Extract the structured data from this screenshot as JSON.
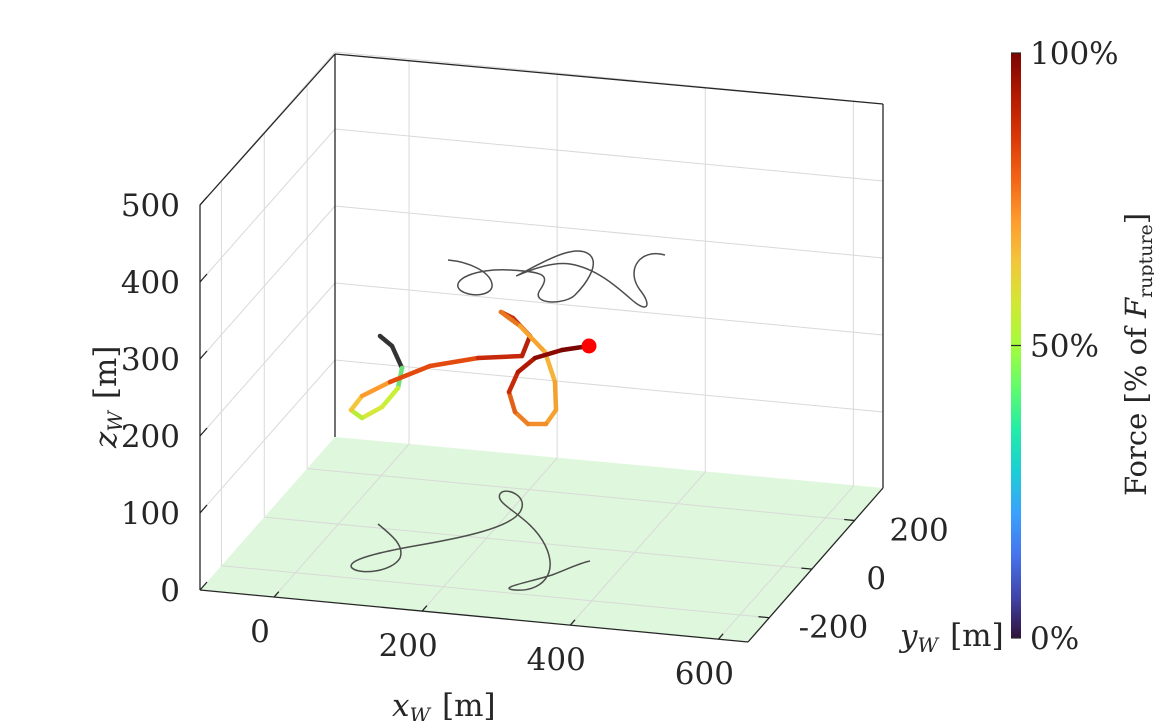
{
  "chart_data": {
    "type": "line3d",
    "axes": {
      "x": {
        "var": "x",
        "sub": "W",
        "unit": "[m]",
        "ticks": [
          "0",
          "200",
          "400",
          "600"
        ],
        "tick_values": [
          0,
          200,
          400,
          600
        ],
        "range": [
          -100,
          640
        ]
      },
      "y": {
        "var": "y",
        "sub": "W",
        "unit": "[m]",
        "ticks": [
          "-200",
          "0",
          "200"
        ],
        "tick_values": [
          -200,
          0,
          200
        ],
        "range": [
          -300,
          330
        ]
      },
      "z": {
        "var": "z",
        "sub": "W",
        "unit": "[m]",
        "ticks": [
          "0",
          "100",
          "200",
          "300",
          "400",
          "500"
        ],
        "tick_values": [
          0,
          100,
          200,
          300,
          400,
          500
        ],
        "range": [
          0,
          500
        ]
      },
      "grid": true,
      "ground_color": "#dff7dc"
    },
    "colorbar": {
      "label_prefix": "Force [% of ",
      "label_var": "F",
      "label_sub": "rupture",
      "label_suffix": "]",
      "ticks": [
        "0%",
        "50%",
        "100%"
      ],
      "tick_values": [
        0,
        50,
        100
      ],
      "colormap": "turbo",
      "colors": [
        "#30123b",
        "#4145ab",
        "#4675ed",
        "#39a2fc",
        "#1bcfd4",
        "#24eca6",
        "#61fc6c",
        "#a4fc3b",
        "#d1e834",
        "#f3c63a",
        "#fe9b2d",
        "#f36315",
        "#d93806",
        "#b11901",
        "#7a0402"
      ]
    },
    "trajectory": {
      "point_colors": [
        "#333333",
        "#6ee17a",
        "#c8f037",
        "#d6e83a",
        "#b8ee38",
        "#f3c63a",
        "#fe9b2d",
        "#e34a0e",
        "#c8290a",
        "#b8210a",
        "#bf2a0b",
        "#c8300c",
        "#e8761e",
        "#f6a42e",
        "#f5b33a",
        "#f4a130",
        "#f1902a",
        "#ed7f25",
        "#e26116",
        "#c8290a",
        "#b11901",
        "#8a0a02",
        "#7a0402"
      ],
      "endpoint_color": "#ff0000",
      "shadow_color": "#4d4d4d"
    }
  }
}
